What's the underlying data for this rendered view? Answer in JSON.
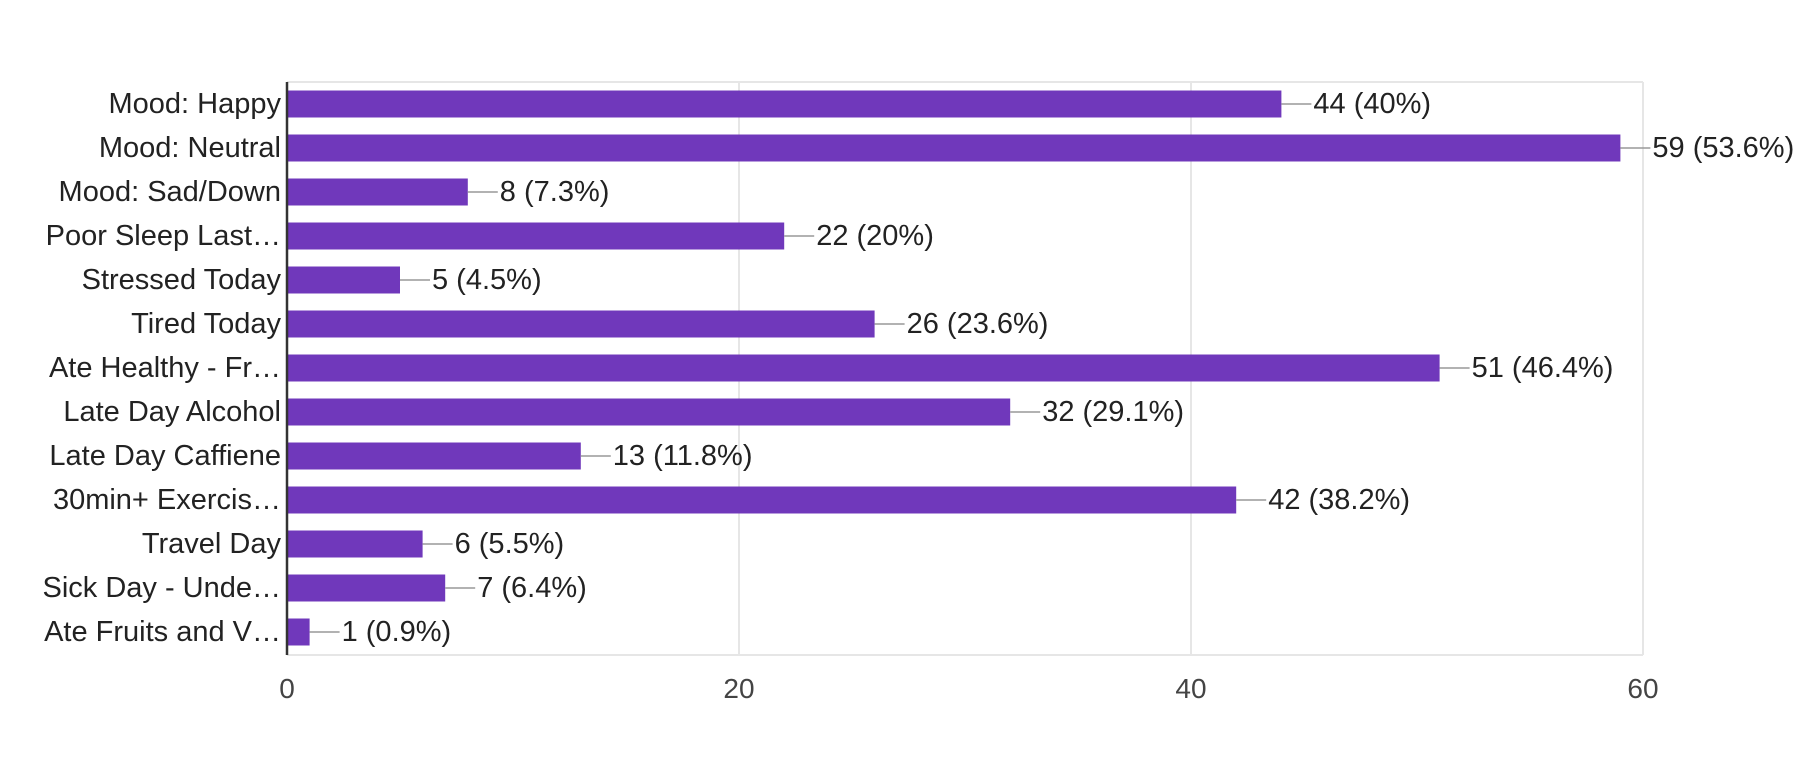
{
  "chart_data": {
    "type": "bar",
    "orientation": "horizontal",
    "categories": [
      "Mood: Happy",
      "Mood: Neutral",
      "Mood: Sad/Down",
      "Poor Sleep Last…",
      "Stressed Today",
      "Tired Today",
      "Ate Healthy - Fr…",
      "Late Day Alcohol",
      "Late Day Caffiene",
      "30min+ Exercis…",
      "Travel Day",
      "Sick Day - Unde…",
      "Ate Fruits and V…"
    ],
    "values": [
      44,
      59,
      8,
      22,
      5,
      26,
      51,
      32,
      13,
      42,
      6,
      7,
      1
    ],
    "data_labels": [
      "44 (40%)",
      "59 (53.6%)",
      "8 (7.3%)",
      "22 (20%)",
      "5 (4.5%)",
      "26 (23.6%)",
      "51 (46.4%)",
      "32 (29.1%)",
      "13 (11.8%)",
      "42 (38.2%)",
      "6 (5.5%)",
      "7 (6.4%)",
      "1 (0.9%)"
    ],
    "xlim": [
      0,
      60
    ],
    "x_ticks": [
      0,
      20,
      40,
      60
    ],
    "x_tick_labels": [
      "0",
      "20",
      "40",
      "60"
    ],
    "grid": true,
    "legend": "none",
    "colors": {
      "bar": "#7038bb",
      "grid": "#e6e6e6",
      "axis": "#333333",
      "leader": "#999999",
      "text": "#222222"
    }
  }
}
